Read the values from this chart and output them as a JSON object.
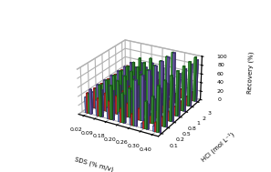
{
  "sds_labels": [
    "0.02",
    "0.09",
    "0.18",
    "0.20",
    "0.26",
    "0.30",
    "0.40"
  ],
  "hcl_labels": [
    "0.1",
    "0.2",
    "0.5",
    "0.8",
    "1",
    "2",
    "3"
  ],
  "bar_colors": [
    "#7799DD",
    "#DD3333",
    "#44AA44",
    "#8877CC"
  ],
  "bar_edge_colors": [
    "#223366",
    "#881111",
    "#115511",
    "#332266"
  ],
  "hatches": [
    "x",
    "/",
    "\\",
    ""
  ],
  "recovery": {
    "blue": [
      [
        35,
        35,
        35,
        35,
        35,
        35,
        35
      ],
      [
        35,
        35,
        35,
        35,
        35,
        35,
        35
      ],
      [
        25,
        25,
        25,
        25,
        25,
        25,
        25
      ],
      [
        20,
        20,
        20,
        20,
        20,
        20,
        20
      ],
      [
        15,
        15,
        15,
        15,
        15,
        15,
        15
      ],
      [
        10,
        10,
        10,
        10,
        10,
        10,
        10
      ],
      [
        12,
        12,
        12,
        12,
        12,
        12,
        12
      ]
    ],
    "red": [
      [
        45,
        45,
        45,
        45,
        45,
        45,
        45
      ],
      [
        40,
        40,
        40,
        40,
        40,
        40,
        40
      ],
      [
        40,
        40,
        40,
        40,
        40,
        40,
        40
      ],
      [
        30,
        30,
        30,
        30,
        30,
        30,
        30
      ],
      [
        25,
        25,
        25,
        25,
        25,
        25,
        25
      ],
      [
        20,
        20,
        20,
        20,
        20,
        20,
        20
      ],
      [
        20,
        20,
        20,
        20,
        20,
        20,
        20
      ]
    ],
    "green": [
      [
        45,
        45,
        45,
        45,
        45,
        45,
        45
      ],
      [
        70,
        70,
        70,
        70,
        70,
        70,
        70
      ],
      [
        75,
        75,
        75,
        75,
        75,
        75,
        75
      ],
      [
        65,
        65,
        65,
        65,
        65,
        65,
        65
      ],
      [
        100,
        100,
        100,
        100,
        100,
        100,
        100
      ],
      [
        60,
        60,
        60,
        60,
        60,
        60,
        60
      ],
      [
        100,
        100,
        100,
        100,
        100,
        100,
        100
      ]
    ],
    "purple": [
      [
        55,
        55,
        55,
        55,
        55,
        55,
        55
      ],
      [
        60,
        60,
        60,
        60,
        60,
        60,
        60
      ],
      [
        65,
        65,
        65,
        65,
        65,
        65,
        65
      ],
      [
        60,
        60,
        60,
        60,
        60,
        60,
        60
      ],
      [
        100,
        100,
        100,
        100,
        100,
        100,
        100
      ],
      [
        55,
        55,
        55,
        55,
        55,
        55,
        55
      ],
      [
        95,
        95,
        95,
        95,
        95,
        95,
        95
      ]
    ]
  },
  "ylabel": "Recovery (%)",
  "xlabel_sds": "SDS (% m/v)",
  "xlabel_hcl": "HCl (mol L⁻¹)",
  "figsize": [
    2.97,
    1.89
  ],
  "dpi": 100,
  "elev": 25,
  "azim": -60
}
